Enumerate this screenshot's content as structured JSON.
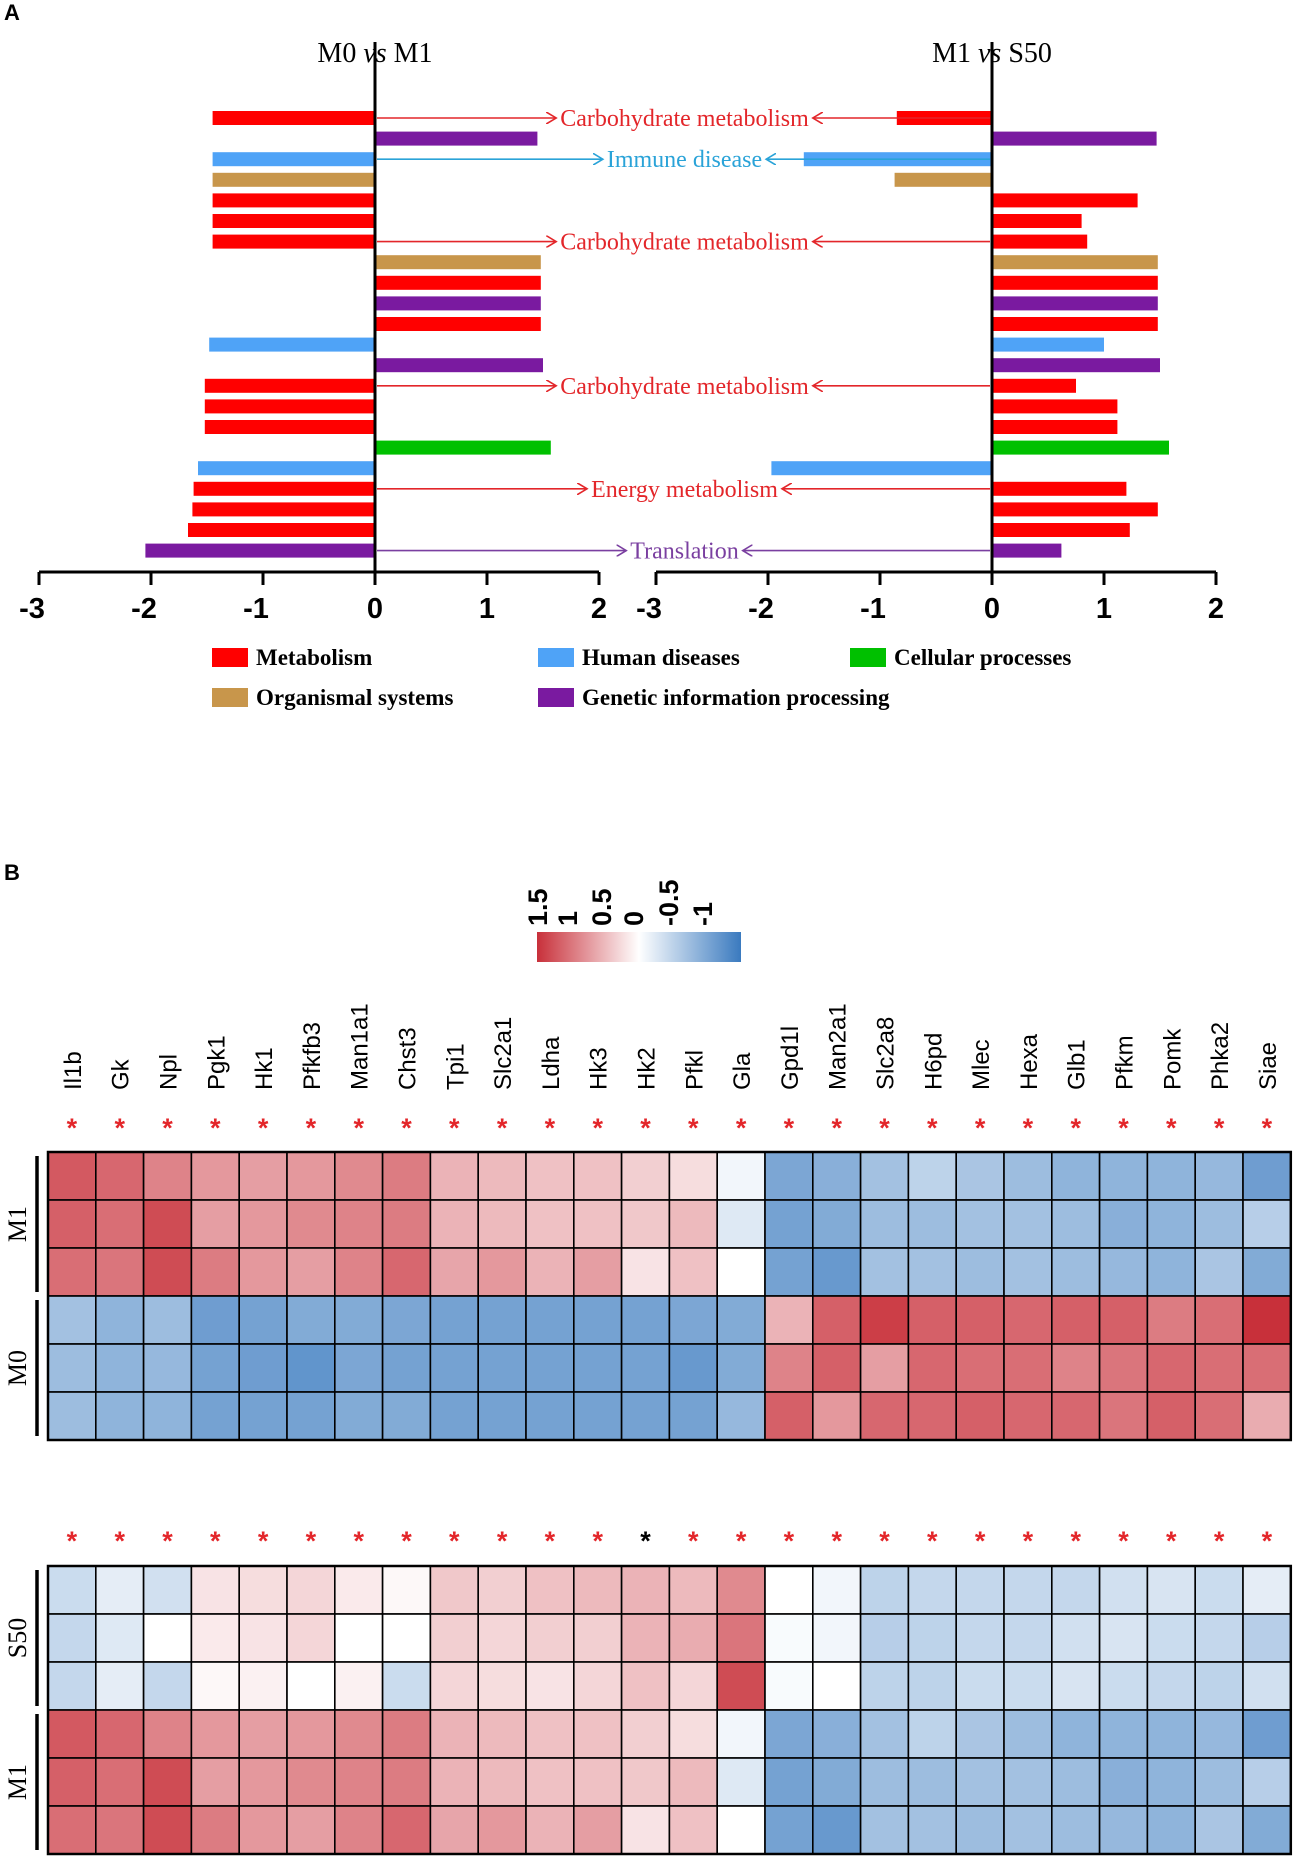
{
  "panel_a_label": "A",
  "panel_b_label": "B",
  "chart_data": [
    {
      "type": "bar",
      "orientation": "horizontal",
      "panel": "A",
      "subcharts": [
        {
          "title_left": "M0",
          "title_vs": "vs",
          "title_right": "M1",
          "xlim": [
            -3,
            2
          ],
          "ticks": [
            -3,
            -2,
            -1,
            0,
            1,
            2
          ],
          "values": [
            -1.45,
            1.45,
            -1.45,
            -1.45,
            -1.45,
            -1.45,
            -1.45,
            1.48,
            1.48,
            1.48,
            1.48,
            -1.48,
            1.5,
            -1.52,
            -1.52,
            -1.52,
            1.57,
            -1.58,
            -1.62,
            -1.63,
            -1.67,
            -2.05
          ],
          "categories": [
            "Metabolism",
            "Genetic information processing",
            "Human diseases",
            "Organismal systems",
            "Metabolism",
            "Metabolism",
            "Metabolism",
            "Organismal systems",
            "Metabolism",
            "Genetic information processing",
            "Metabolism",
            "Human diseases",
            "Genetic information processing",
            "Metabolism",
            "Metabolism",
            "Metabolism",
            "Cellular processes",
            "Human diseases",
            "Metabolism",
            "Metabolism",
            "Metabolism",
            "Genetic information processing"
          ]
        },
        {
          "title_left": "M1",
          "title_vs": "vs",
          "title_right": "S50",
          "xlim": [
            -3,
            2
          ],
          "ticks": [
            -3,
            -2,
            -1,
            0,
            1,
            2
          ],
          "values": [
            -0.85,
            1.47,
            -1.68,
            -0.87,
            1.3,
            0.8,
            0.85,
            1.48,
            1.48,
            1.48,
            1.48,
            1.0,
            1.5,
            0.75,
            1.12,
            1.12,
            1.58,
            -1.97,
            1.2,
            1.48,
            1.23,
            0.62
          ],
          "categories": [
            "Metabolism",
            "Genetic information processing",
            "Human diseases",
            "Organismal systems",
            "Metabolism",
            "Metabolism",
            "Metabolism",
            "Organismal systems",
            "Metabolism",
            "Genetic information processing",
            "Metabolism",
            "Human diseases",
            "Genetic information processing",
            "Metabolism",
            "Metabolism",
            "Metabolism",
            "Cellular processes",
            "Human diseases",
            "Metabolism",
            "Metabolism",
            "Metabolism",
            "Genetic information processing"
          ]
        }
      ],
      "annotations": [
        {
          "text": "Carbohydrate metabolism",
          "row": 0,
          "category": "Metabolism"
        },
        {
          "text": "Immune disease",
          "row": 2,
          "category": "Human diseases"
        },
        {
          "text": "Carbohydrate metabolism",
          "row": 6,
          "category": "Metabolism"
        },
        {
          "text": "Carbohydrate metabolism",
          "row": 13,
          "category": "Metabolism"
        },
        {
          "text": "Energy metabolism",
          "row": 18,
          "category": "Metabolism"
        },
        {
          "text": "Translation",
          "row": 21,
          "category": "Genetic information processing"
        }
      ],
      "legend": [
        {
          "label": "Metabolism",
          "color": "#ff0000"
        },
        {
          "label": "Human diseases",
          "color": "#4fa3f7"
        },
        {
          "label": "Cellular processes",
          "color": "#00c000"
        },
        {
          "label": "Organismal systems",
          "color": "#c8964b"
        },
        {
          "label": "Genetic information processing",
          "color": "#7a1aa0"
        }
      ],
      "annotation_colors": {
        "Metabolism": "#e3262a",
        "Human diseases": "#2aa3d8",
        "Genetic information processing": "#7a3fa0"
      }
    },
    {
      "type": "heatmap",
      "panel": "B",
      "colorscale": {
        "ticks": [
          "1.5",
          "1",
          "0.5",
          "0",
          "-0.5",
          "-1"
        ],
        "range": [
          -1.5,
          1.5
        ],
        "high_color": "#c8303a",
        "mid_color": "#ffffff",
        "low_color": "#3a7abf"
      },
      "genes": [
        "Il1b",
        "Gk",
        "Npl",
        "Pgk1",
        "Hk1",
        "Pfkfb3",
        "Man1a1",
        "Chst3",
        "Tpi1",
        "Slc2a1",
        "Ldha",
        "Hk3",
        "Hk2",
        "Pfkl",
        "Gla",
        "Gpd1l",
        "Man2a1",
        "Slc2a8",
        "H6pd",
        "Mlec",
        "Hexa",
        "Glb1",
        "Pfkm",
        "Pomk",
        "Phka2",
        "Siae"
      ],
      "blocks": [
        {
          "significance": [
            "red",
            "red",
            "red",
            "red",
            "red",
            "red",
            "red",
            "red",
            "red",
            "red",
            "red",
            "red",
            "red",
            "red",
            "red",
            "red",
            "red",
            "red",
            "red",
            "red",
            "red",
            "red",
            "red",
            "red",
            "red",
            "red"
          ],
          "groups": [
            {
              "label": "M1",
              "rows": [
                [
                  1.2,
                  1.1,
                  0.9,
                  0.75,
                  0.7,
                  0.75,
                  0.85,
                  0.95,
                  0.55,
                  0.5,
                  0.45,
                  0.45,
                  0.35,
                  0.25,
                  -0.1,
                  -1.0,
                  -0.9,
                  -0.7,
                  -0.5,
                  -0.65,
                  -0.75,
                  -0.85,
                  -0.85,
                  -0.85,
                  -0.8,
                  -1.1
                ],
                [
                  1.15,
                  1.05,
                  1.3,
                  0.7,
                  0.75,
                  0.85,
                  0.9,
                  0.95,
                  0.55,
                  0.5,
                  0.45,
                  0.45,
                  0.4,
                  0.5,
                  -0.25,
                  -1.05,
                  -0.95,
                  -0.75,
                  -0.75,
                  -0.7,
                  -0.7,
                  -0.75,
                  -0.9,
                  -0.85,
                  -0.75,
                  -0.55
                ],
                [
                  1.05,
                  1.0,
                  1.3,
                  0.95,
                  0.75,
                  0.7,
                  0.9,
                  1.1,
                  0.65,
                  0.75,
                  0.55,
                  0.7,
                  0.2,
                  0.45,
                  0.0,
                  -1.05,
                  -1.15,
                  -0.7,
                  -0.7,
                  -0.75,
                  -0.7,
                  -0.75,
                  -0.8,
                  -0.85,
                  -0.65,
                  -0.95
                ]
              ]
            },
            {
              "label": "M0",
              "rows": [
                [
                  -0.7,
                  -0.85,
                  -0.75,
                  -1.1,
                  -1.05,
                  -0.95,
                  -0.95,
                  -1.0,
                  -1.05,
                  -1.05,
                  -1.05,
                  -1.05,
                  -1.05,
                  -1.0,
                  -0.95,
                  0.55,
                  1.15,
                  1.4,
                  1.15,
                  1.15,
                  1.1,
                  1.15,
                  1.15,
                  0.95,
                  1.05,
                  1.5
                ],
                [
                  -0.75,
                  -0.85,
                  -0.8,
                  -1.05,
                  -1.1,
                  -1.2,
                  -1.0,
                  -1.05,
                  -1.05,
                  -1.05,
                  -1.05,
                  -1.05,
                  -1.05,
                  -1.15,
                  -0.95,
                  0.9,
                  1.15,
                  0.7,
                  1.1,
                  1.05,
                  1.05,
                  0.9,
                  1.0,
                  1.1,
                  1.05,
                  1.05
                ],
                [
                  -0.75,
                  -0.85,
                  -0.85,
                  -1.05,
                  -1.05,
                  -1.05,
                  -0.95,
                  -0.95,
                  -1.05,
                  -1.05,
                  -1.05,
                  -1.05,
                  -1.05,
                  -1.05,
                  -0.8,
                  1.15,
                  0.75,
                  1.1,
                  1.1,
                  1.15,
                  1.1,
                  1.1,
                  1.0,
                  1.15,
                  1.05,
                  0.6
                ]
              ]
            }
          ]
        },
        {
          "significance": [
            "red",
            "red",
            "red",
            "red",
            "red",
            "red",
            "red",
            "red",
            "red",
            "red",
            "red",
            "red",
            "black",
            "red",
            "red",
            "red",
            "red",
            "red",
            "red",
            "red",
            "red",
            "red",
            "red",
            "red",
            "red",
            "red"
          ],
          "groups": [
            {
              "label": "S50",
              "rows": [
                [
                  -0.4,
                  -0.2,
                  -0.35,
                  0.2,
                  0.25,
                  0.3,
                  0.15,
                  0.05,
                  0.4,
                  0.35,
                  0.45,
                  0.5,
                  0.55,
                  0.5,
                  0.85,
                  0.0,
                  -0.1,
                  -0.5,
                  -0.45,
                  -0.45,
                  -0.45,
                  -0.45,
                  -0.35,
                  -0.3,
                  -0.4,
                  -0.2
                ],
                [
                  -0.45,
                  -0.25,
                  0.0,
                  0.15,
                  0.2,
                  0.3,
                  0.0,
                  0.0,
                  0.35,
                  0.3,
                  0.35,
                  0.35,
                  0.55,
                  0.6,
                  1.0,
                  -0.05,
                  -0.1,
                  -0.55,
                  -0.5,
                  -0.45,
                  -0.45,
                  -0.35,
                  -0.3,
                  -0.4,
                  -0.45,
                  -0.55
                ],
                [
                  -0.45,
                  -0.2,
                  -0.45,
                  0.05,
                  0.1,
                  0.0,
                  0.1,
                  -0.4,
                  0.3,
                  0.25,
                  0.2,
                  0.3,
                  0.45,
                  0.3,
                  1.3,
                  -0.05,
                  0.0,
                  -0.5,
                  -0.5,
                  -0.4,
                  -0.4,
                  -0.3,
                  -0.4,
                  -0.45,
                  -0.5,
                  -0.35
                ]
              ]
            },
            {
              "label": "M1",
              "rows": [
                [
                  1.2,
                  1.1,
                  0.9,
                  0.75,
                  0.7,
                  0.75,
                  0.85,
                  0.95,
                  0.55,
                  0.5,
                  0.45,
                  0.45,
                  0.35,
                  0.25,
                  -0.1,
                  -1.0,
                  -0.9,
                  -0.7,
                  -0.5,
                  -0.65,
                  -0.75,
                  -0.85,
                  -0.85,
                  -0.85,
                  -0.8,
                  -1.1
                ],
                [
                  1.15,
                  1.05,
                  1.3,
                  0.7,
                  0.75,
                  0.85,
                  0.9,
                  0.95,
                  0.55,
                  0.5,
                  0.45,
                  0.45,
                  0.4,
                  0.5,
                  -0.25,
                  -1.05,
                  -0.95,
                  -0.75,
                  -0.75,
                  -0.7,
                  -0.7,
                  -0.75,
                  -0.9,
                  -0.85,
                  -0.75,
                  -0.55
                ],
                [
                  1.05,
                  1.0,
                  1.3,
                  0.95,
                  0.75,
                  0.7,
                  0.9,
                  1.1,
                  0.65,
                  0.75,
                  0.55,
                  0.7,
                  0.2,
                  0.45,
                  0.0,
                  -1.05,
                  -1.15,
                  -0.7,
                  -0.7,
                  -0.75,
                  -0.7,
                  -0.75,
                  -0.8,
                  -0.85,
                  -0.65,
                  -0.95
                ]
              ]
            }
          ]
        }
      ]
    }
  ]
}
